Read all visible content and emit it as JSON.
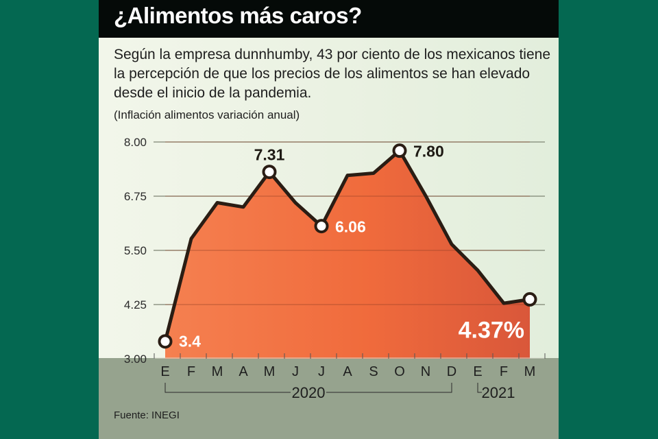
{
  "colors": {
    "background": "#046851",
    "title_bar": "#050a08",
    "area_left": "#f58050",
    "area_mid": "#f06b3c",
    "area_right": "#d9573a",
    "line": "#2a1d14",
    "bottom_band": "#96a38e"
  },
  "header": {
    "title": "¿Alimentos más caros?"
  },
  "description": "Según la empresa dunnhumby, 43 por ciento de los mexicanos tiene la percepción de que los precios de los alimentos se han elevado desde el inicio de la pandemia.",
  "footer": {
    "source": "Fuente: INEGI"
  },
  "chart_data": {
    "type": "area",
    "title": "¿Alimentos más caros?",
    "subtitle": "(Inflación alimentos variación anual)",
    "xlabel": "",
    "ylabel": "",
    "ylim": [
      3.0,
      8.0
    ],
    "yticks": [
      "8.00",
      "6.75",
      "5.50",
      "4.25",
      "3.00"
    ],
    "ytick_values": [
      8.0,
      6.75,
      5.5,
      4.25,
      3.0
    ],
    "grid": true,
    "categories": [
      "E",
      "F",
      "M",
      "A",
      "M",
      "J",
      "J",
      "A",
      "S",
      "O",
      "N",
      "D",
      "E",
      "F",
      "M"
    ],
    "year_groups": [
      {
        "label": "2020",
        "from": 0,
        "to": 11
      },
      {
        "label": "2021",
        "from": 12,
        "to": 14
      }
    ],
    "series": [
      {
        "name": "Inflación alimentos variación anual",
        "values": [
          3.4,
          5.77,
          6.6,
          6.5,
          7.31,
          6.6,
          6.06,
          7.23,
          7.28,
          7.8,
          6.76,
          5.64,
          5.04,
          4.28,
          4.37
        ]
      }
    ],
    "annotations": [
      {
        "index": 0,
        "text": "3.4",
        "style": "light"
      },
      {
        "index": 4,
        "text": "7.31",
        "style": "dark"
      },
      {
        "index": 6,
        "text": "6.06",
        "style": "light"
      },
      {
        "index": 9,
        "text": "7.80",
        "style": "dark"
      },
      {
        "index": 14,
        "text": "4.37%",
        "style": "big"
      }
    ]
  }
}
